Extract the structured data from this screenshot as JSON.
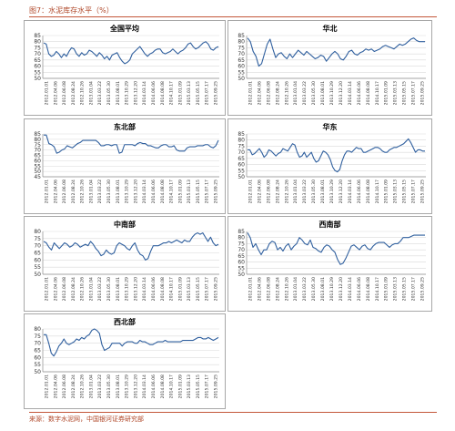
{
  "figure": {
    "title": "图7：水泥库存水平（%）",
    "source": "来源：数字水泥网，中国银河证券研究部"
  },
  "x_tick_labels": [
    "2012.01.01",
    "2012.04.06",
    "2012.06.08",
    "2012.08.24",
    "2012.10.26",
    "2013.01.04",
    "2013.03.22",
    "2013.05.30",
    "2013.08.01",
    "2013.10.29",
    "2013.12.20",
    "2014.03.14",
    "2014.06.06",
    "2014.08.08",
    "2014.10.17",
    "2015.01.09",
    "2015.03.13",
    "2015.05.15",
    "2015.07.17",
    "2015.09.25"
  ],
  "colors": {
    "line": "#2f5f9e",
    "grid": "#d9d9d9",
    "accent": "#c3573a"
  },
  "chart_data": [
    {
      "type": "line",
      "title": "全国平均",
      "ylim": [
        50,
        85
      ],
      "yticks": [
        50,
        55,
        60,
        65,
        70,
        75,
        80,
        85
      ],
      "series": [
        {
          "values": [
            79,
            78,
            70,
            68,
            69,
            72,
            70,
            67,
            70,
            68,
            72,
            75,
            74,
            70,
            68,
            71,
            69,
            70,
            73,
            72,
            70,
            68,
            71,
            69,
            66,
            68,
            65,
            69,
            70,
            71,
            67,
            64,
            62,
            63,
            65,
            70,
            72,
            74,
            76,
            73,
            70,
            68,
            70,
            71,
            73,
            74,
            74,
            71,
            70,
            71,
            72,
            74,
            72,
            70,
            72,
            73,
            75,
            78,
            79,
            76,
            74,
            75,
            77,
            79,
            80,
            78,
            74,
            73,
            75,
            76
          ]
        }
      ]
    },
    {
      "type": "line",
      "title": "华北",
      "ylim": [
        50,
        85
      ],
      "yticks": [
        50,
        55,
        60,
        65,
        70,
        75,
        80,
        85
      ],
      "series": [
        {
          "values": [
            83,
            80,
            72,
            68,
            60,
            62,
            70,
            78,
            82,
            74,
            67,
            70,
            71,
            68,
            66,
            70,
            67,
            70,
            73,
            71,
            69,
            72,
            70,
            68,
            66,
            67,
            69,
            68,
            64,
            67,
            70,
            72,
            70,
            66,
            65,
            68,
            72,
            73,
            70,
            69,
            71,
            72,
            74,
            73,
            74,
            72,
            73,
            74,
            76,
            77,
            76,
            75,
            74,
            76,
            78,
            77,
            78,
            80,
            82,
            83,
            81,
            80,
            80,
            80
          ]
        }
      ]
    },
    {
      "type": "line",
      "title": "东北部",
      "ylim": [
        45,
        85
      ],
      "yticks": [
        45,
        50,
        55,
        60,
        65,
        70,
        75,
        80,
        85
      ],
      "series": [
        {
          "values": [
            84,
            84,
            76,
            75,
            73,
            67,
            68,
            70,
            71,
            74,
            73,
            72,
            74,
            76,
            77,
            79,
            79,
            79,
            79,
            79,
            79,
            77,
            74,
            74,
            75,
            75,
            74,
            75,
            75,
            67,
            68,
            75,
            75,
            75,
            75,
            74,
            76,
            77,
            76,
            76,
            74,
            74,
            73,
            72,
            72,
            74,
            75,
            75,
            73,
            73,
            74,
            70,
            69,
            69,
            69,
            72,
            73,
            73,
            73,
            74,
            74,
            74,
            75,
            75,
            73,
            72,
            74,
            79
          ]
        }
      ]
    },
    {
      "type": "line",
      "title": "华东",
      "ylim": [
        50,
        85
      ],
      "yticks": [
        50,
        55,
        60,
        65,
        70,
        75,
        80,
        85
      ],
      "series": [
        {
          "values": [
            72,
            72,
            68,
            69,
            71,
            73,
            70,
            66,
            68,
            72,
            71,
            69,
            67,
            69,
            70,
            73,
            72,
            71,
            74,
            77,
            76,
            70,
            66,
            67,
            70,
            66,
            68,
            70,
            65,
            62,
            63,
            67,
            71,
            70,
            68,
            64,
            58,
            55,
            54,
            56,
            63,
            68,
            71,
            71,
            70,
            72,
            74,
            73,
            73,
            70,
            70,
            71,
            72,
            73,
            74,
            74,
            73,
            71,
            70,
            70,
            72,
            73,
            74,
            74,
            75,
            76,
            77,
            79,
            81,
            78,
            74,
            70,
            72,
            72,
            71,
            71
          ]
        }
      ]
    },
    {
      "type": "line",
      "title": "中南部",
      "ylim": [
        50,
        80
      ],
      "yticks": [
        50,
        55,
        60,
        65,
        70,
        75,
        80
      ],
      "series": [
        {
          "values": [
            73,
            72,
            69,
            67,
            72,
            70,
            68,
            70,
            72,
            71,
            69,
            70,
            72,
            71,
            69,
            70,
            71,
            70,
            73,
            71,
            68,
            66,
            63,
            64,
            67,
            65,
            64,
            65,
            70,
            72,
            71,
            70,
            68,
            67,
            70,
            72,
            67,
            64,
            63,
            60,
            61,
            66,
            70,
            70,
            70,
            71,
            72,
            72,
            73,
            72,
            73,
            74,
            73,
            72,
            74,
            73,
            73,
            76,
            78,
            79,
            78,
            79,
            76,
            73,
            76,
            72,
            70,
            71
          ]
        }
      ]
    },
    {
      "type": "line",
      "title": "西南部",
      "ylim": [
        50,
        85
      ],
      "yticks": [
        50,
        55,
        60,
        65,
        70,
        75,
        80,
        85
      ],
      "series": [
        {
          "values": [
            84,
            80,
            72,
            75,
            70,
            66,
            70,
            70,
            75,
            77,
            76,
            70,
            72,
            69,
            73,
            75,
            70,
            73,
            75,
            80,
            78,
            75,
            74,
            78,
            72,
            71,
            69,
            68,
            72,
            74,
            73,
            70,
            68,
            62,
            58,
            59,
            63,
            68,
            73,
            74,
            72,
            70,
            73,
            74,
            71,
            70,
            73,
            75,
            76,
            76,
            76,
            74,
            72,
            74,
            75,
            75,
            77,
            80,
            80,
            80,
            81,
            82,
            82,
            82,
            82,
            82
          ]
        }
      ]
    },
    {
      "type": "line",
      "title": "西北部",
      "ylim": [
        50,
        80
      ],
      "yticks": [
        50,
        55,
        60,
        65,
        70,
        75,
        80
      ],
      "series": [
        {
          "values": [
            76,
            76,
            70,
            63,
            61,
            64,
            68,
            70,
            73,
            70,
            69,
            70,
            71,
            73,
            72,
            74,
            73,
            75,
            76,
            79,
            80,
            79,
            77,
            69,
            65,
            66,
            67,
            70,
            70,
            70,
            70,
            68,
            70,
            71,
            71,
            71,
            70,
            70,
            72,
            71,
            71,
            70,
            69,
            69,
            70,
            71,
            71,
            71,
            72,
            71,
            71,
            71,
            71,
            71,
            71,
            72,
            72,
            72,
            72,
            72,
            73,
            74,
            74,
            73,
            73,
            74,
            73,
            72,
            73,
            74
          ]
        }
      ]
    }
  ]
}
